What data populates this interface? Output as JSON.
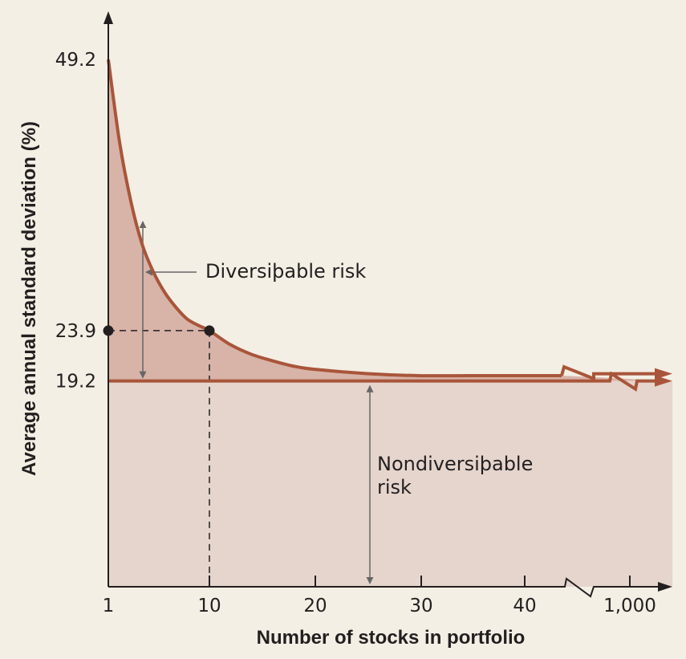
{
  "chart_data": {
    "type": "area",
    "xlabel": "Number of stocks in portfolio",
    "ylabel": "Average annual standard deviation (%)",
    "x_ticks": [
      "1",
      "10",
      "20",
      "30",
      "40",
      "1,000"
    ],
    "y_ticks": [
      "49.2",
      "23.9",
      "19.2"
    ],
    "ylim": [
      0,
      50
    ],
    "axis_break_x": true,
    "series": [
      {
        "name": "",
        "x": [
          1,
          2,
          3,
          4,
          5,
          6,
          7,
          8,
          9,
          10,
          12,
          14,
          16,
          18,
          20,
          25,
          30,
          35,
          40
        ],
        "values": [
          49.2,
          41.5,
          36.0,
          32.0,
          29.4,
          27.5,
          26.1,
          25.0,
          24.4,
          23.9,
          22.6,
          21.7,
          21.1,
          20.6,
          20.3,
          19.9,
          19.7,
          19.7,
          19.7
        ]
      }
    ],
    "asymptote_value": 19.2,
    "highlight_point": {
      "x": 10,
      "y": 23.9
    },
    "annotations": {
      "diversifiable": "Diversiþable risk",
      "nondiversifiable_line1": "Nondiversiþable",
      "nondiversifiable_line2": "risk"
    },
    "colors": {
      "curve": "#a9553a",
      "diversifiable_fill": "#d8b3a8",
      "nondiversifiable_fill": "#e5d5cd",
      "background": "#f3efe4",
      "axis": "#231f20",
      "arrow": "#666666"
    }
  }
}
